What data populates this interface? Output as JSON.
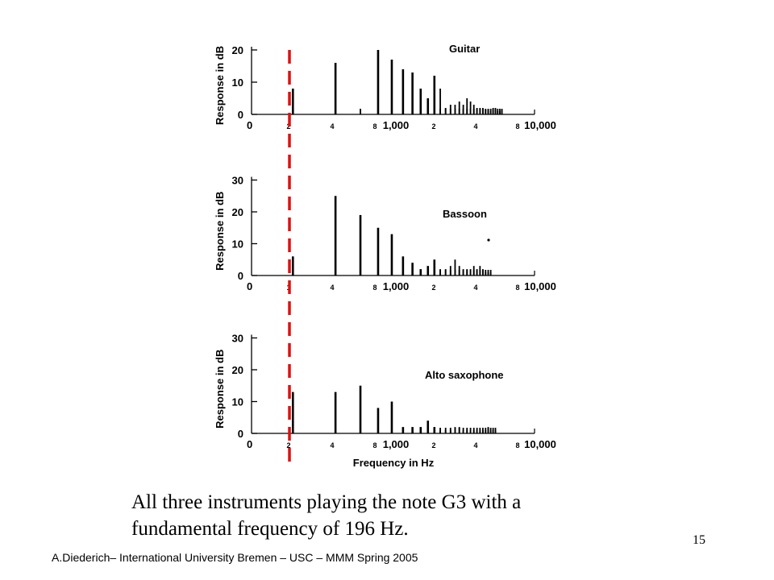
{
  "caption": {
    "line1": "All three instruments playing the note G3 with a",
    "line2": "fundamental frequency of 196 Hz."
  },
  "footer": "A.Diederich– International University Bremen – USC – MMM  Spring 2005",
  "page_number": "15",
  "colors": {
    "marker": "#dd1111",
    "ink": "#000000"
  },
  "chart_data": [
    {
      "type": "bar",
      "title": "Guitar",
      "ylabel": "Response in dB",
      "xlabel": "",
      "y_ticks": [
        "0",
        "10",
        "20"
      ],
      "ylim": [
        0,
        20
      ],
      "x_tick_labels": [
        "0",
        "2",
        "4",
        "8",
        "1,000",
        "2",
        "4",
        "8",
        "10,000"
      ],
      "harmonics": [
        8,
        16,
        0,
        20,
        17,
        14,
        13,
        8,
        5,
        12,
        8,
        2,
        3,
        3,
        4,
        3,
        5,
        4,
        3,
        2,
        2,
        2,
        1.5,
        1.5,
        1,
        2,
        2,
        1,
        1,
        1.5
      ]
    },
    {
      "type": "bar",
      "title": "Bassoon",
      "ylabel": "Response in dB",
      "xlabel": "",
      "y_ticks": [
        "0",
        "10",
        "20",
        "30"
      ],
      "ylim": [
        0,
        30
      ],
      "x_tick_labels": [
        "0",
        "1",
        "4",
        "8",
        "1,000",
        "2",
        "4",
        "8",
        "10,000"
      ],
      "harmonics": [
        6,
        25,
        19,
        15,
        13,
        6,
        4,
        2,
        3,
        5,
        2,
        2,
        3,
        5,
        3,
        2,
        2,
        2,
        3,
        2,
        3,
        2,
        1,
        1,
        1
      ]
    },
    {
      "type": "bar",
      "title": "Alto saxophone",
      "ylabel": "Response in dB",
      "xlabel": "Frequency in Hz",
      "y_ticks": [
        "0",
        "10",
        "20",
        "30"
      ],
      "ylim": [
        0,
        30
      ],
      "x_tick_labels": [
        "0",
        "2",
        "4",
        "8",
        "1,000",
        "2",
        "4",
        "8",
        "10,000"
      ],
      "harmonics": [
        13,
        13,
        15,
        8,
        10,
        2,
        2,
        2,
        4,
        2,
        1,
        1,
        1,
        2,
        2,
        1,
        1,
        1,
        1,
        1,
        1,
        1,
        1,
        2,
        1,
        1,
        1
      ]
    }
  ]
}
